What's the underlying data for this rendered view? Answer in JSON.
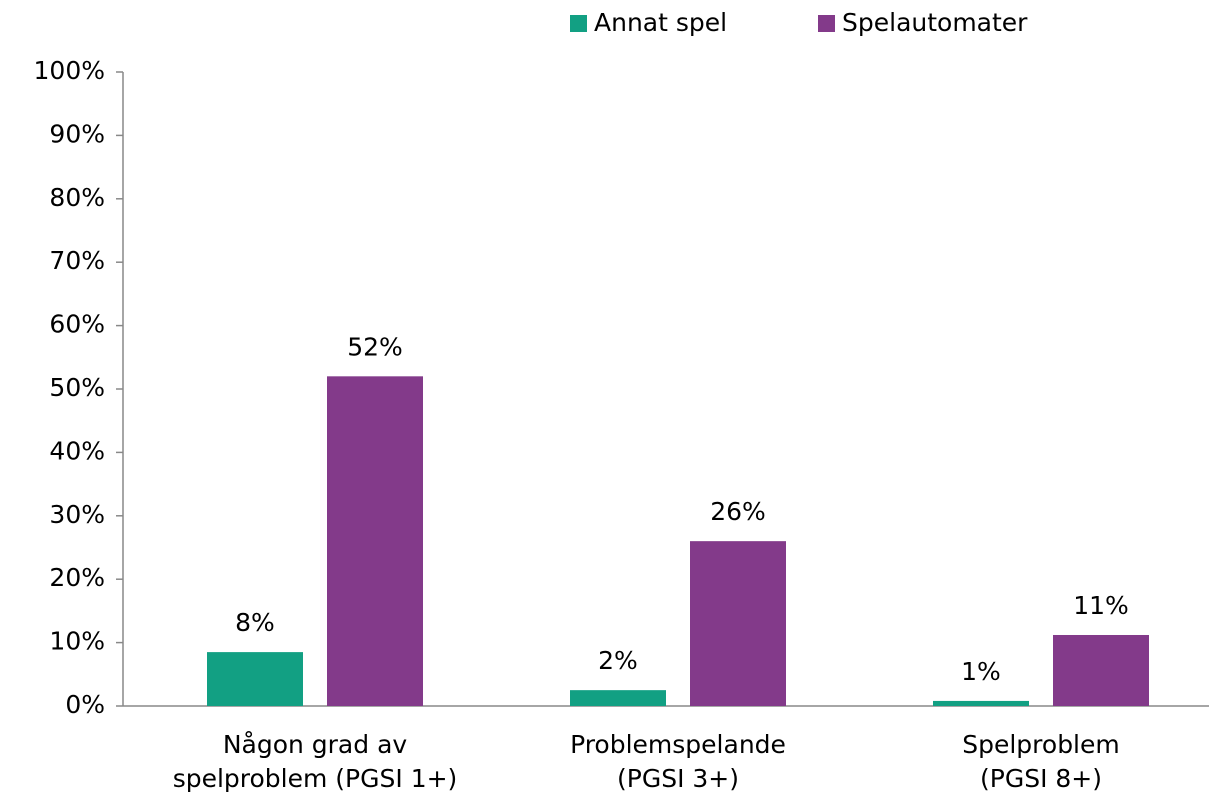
{
  "chart_data": {
    "type": "bar",
    "categories": [
      "Någon grad av\nspelproblem (PGSI 1+)",
      "Problemspelande\n(PGSI 3+)",
      "Spelproblem\n(PGSI 8+)"
    ],
    "series": [
      {
        "name": "Annat spel",
        "color": "#12a083",
        "values": [
          8.5,
          2.5,
          0.8
        ],
        "value_labels": [
          "8%",
          "2%",
          "1%"
        ]
      },
      {
        "name": "Spelautomater",
        "color": "#833a8a",
        "values": [
          52,
          26,
          11.2
        ],
        "value_labels": [
          "52%",
          "26%",
          "11%"
        ]
      }
    ],
    "ylim": [
      0,
      100
    ],
    "yticks": [
      {
        "value": 0,
        "label": "0%"
      },
      {
        "value": 10,
        "label": "10%"
      },
      {
        "value": 20,
        "label": "20%"
      },
      {
        "value": 30,
        "label": "30%"
      },
      {
        "value": 40,
        "label": "40%"
      },
      {
        "value": 50,
        "label": "50%"
      },
      {
        "value": 60,
        "label": "60%"
      },
      {
        "value": 70,
        "label": "70%"
      },
      {
        "value": 80,
        "label": "80%"
      },
      {
        "value": 90,
        "label": "90%"
      },
      {
        "value": 100,
        "label": "100%"
      }
    ],
    "grid": false,
    "legend": "top"
  }
}
